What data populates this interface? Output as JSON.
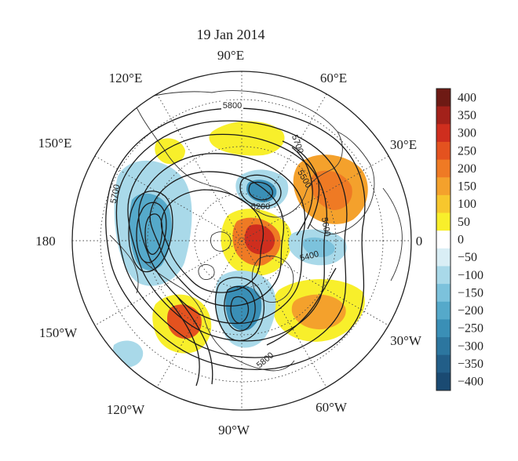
{
  "title": "19 Jan 2014",
  "longitude_labels": {
    "deg_90e": "90°E",
    "deg_60e": "60°E",
    "deg_30e": "30°E",
    "deg_0": "0",
    "deg_30w": "30°W",
    "deg_60w": "60°W",
    "deg_90w": "90°W",
    "deg_120w": "120°W",
    "deg_150w": "150°W",
    "deg_180": "180",
    "deg_150e": "150°E",
    "deg_120e": "120°E"
  },
  "contour_labels": {
    "c5800_top": "5800",
    "c5700_left": "5700",
    "c5700_right": "5700",
    "c5500": "5500",
    "c5200": "5200",
    "c5400": "5400",
    "c5600": "5600",
    "c5800_bottom": "5800"
  },
  "colorbar": {
    "ticks": [
      "400",
      "350",
      "300",
      "250",
      "200",
      "150",
      "100",
      "50",
      "0",
      "−50",
      "−100",
      "−150",
      "−200",
      "−250",
      "−300",
      "−350",
      "−400"
    ],
    "colors": [
      "#6e1a14",
      "#a3211a",
      "#cf2e1e",
      "#e4521f",
      "#ef7a24",
      "#f4a12c",
      "#f7c72d",
      "#f8ef2b",
      "#ffffff",
      "#d9eef5",
      "#a9d9e9",
      "#7cc2dc",
      "#55a9ca",
      "#3a8fb6",
      "#2c769f",
      "#225e88",
      "#1a4a72"
    ]
  },
  "colors": {
    "positive_accent": "#e2541f",
    "negative_accent": "#3a8fb6",
    "contour": "#1a1a1a"
  }
}
